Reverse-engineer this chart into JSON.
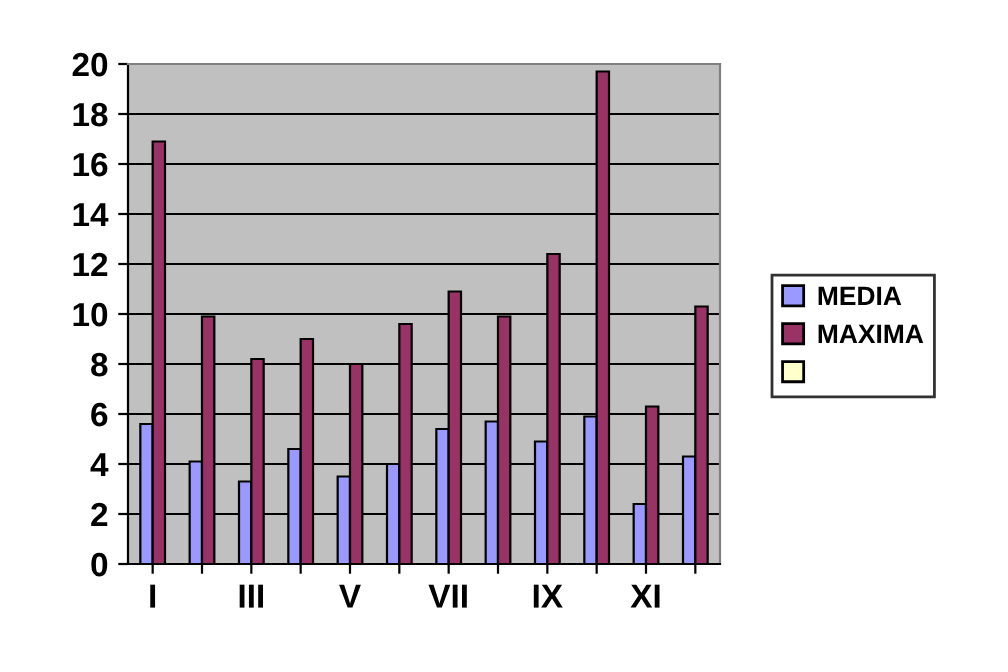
{
  "chart_data": {
    "type": "bar",
    "categories": [
      "I",
      null,
      "III",
      null,
      "V",
      null,
      "VII",
      null,
      "IX",
      null,
      "XI",
      null
    ],
    "series": [
      {
        "name": "MEDIA",
        "color": "#9999ff",
        "values": [
          5.6,
          4.1,
          3.3,
          4.6,
          3.5,
          4.0,
          5.4,
          5.7,
          4.9,
          5.9,
          2.4,
          4.3
        ]
      },
      {
        "name": "MAXIMA",
        "color": "#993366",
        "values": [
          16.9,
          9.9,
          8.2,
          9.0,
          8.0,
          9.6,
          10.9,
          9.9,
          12.4,
          19.7,
          6.3,
          10.3
        ]
      },
      {
        "color": "#ffffcc",
        "values": [
          null,
          null,
          null,
          null,
          null,
          null,
          null,
          null,
          null,
          null,
          null,
          null
        ]
      }
    ],
    "ylim": [
      0,
      20
    ],
    "yticks": [
      0,
      2,
      4,
      6,
      8,
      10,
      12,
      14,
      16,
      18,
      20
    ],
    "grid": "y",
    "legend": "right"
  }
}
